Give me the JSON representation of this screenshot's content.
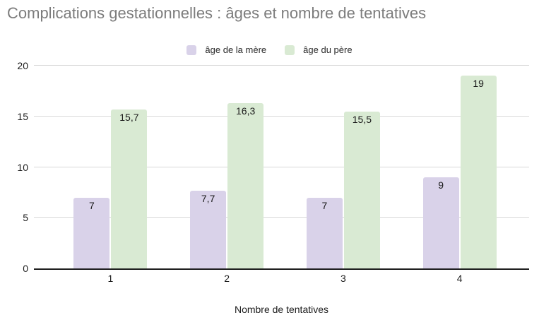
{
  "title": "Complications gestationnelles : âges et nombre de tentatives",
  "chart_data": {
    "type": "bar",
    "title": "Complications gestationnelles : âges et nombre de tentatives",
    "categories": [
      "1",
      "2",
      "3",
      "4"
    ],
    "series": [
      {
        "name": "âge de la mère",
        "color": "#d9d2e9",
        "values": [
          7,
          7.7,
          7,
          9
        ],
        "value_labels": [
          "7",
          "7,7",
          "7",
          "9"
        ]
      },
      {
        "name": "âge du père",
        "color": "#d9ead3",
        "values": [
          15.7,
          16.3,
          15.5,
          19
        ],
        "value_labels": [
          "15,7",
          "16,3",
          "15,5",
          "19"
        ]
      }
    ],
    "xlabel": "Nombre de tentatives",
    "ylabel": "",
    "ylim": [
      0,
      20
    ],
    "yticks": [
      0,
      5,
      10,
      15,
      20
    ],
    "grid": true,
    "legend_position": "top",
    "value_label_position": "inside-top",
    "gridline_color": "#d9d9d9",
    "baseline_color": "#1f1f1f",
    "title_color": "#7c7c7c",
    "label_color": "#1c1c1c",
    "background_color": "#ffffff"
  }
}
